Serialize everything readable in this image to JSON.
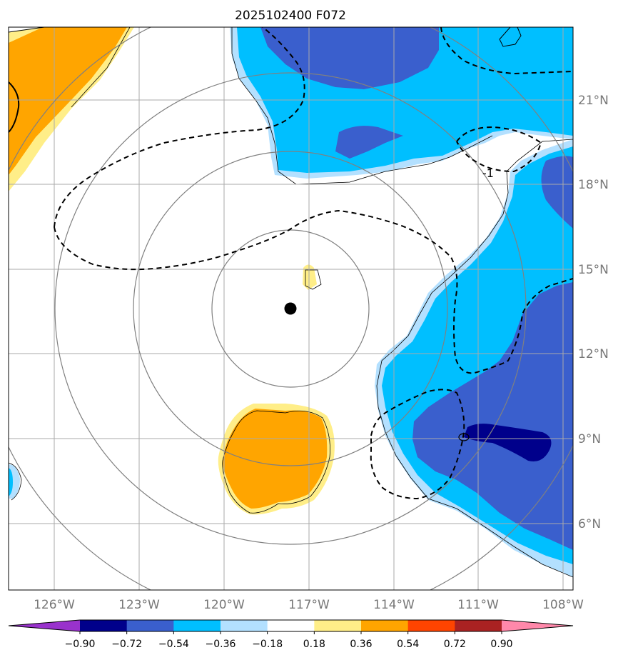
{
  "title": "2025102400 F072",
  "colors": {
    "pink": "#ff88aa",
    "darkred": "#aa2222",
    "red": "#ff4400",
    "orange": "#ffa500",
    "yellow": "#ffee88",
    "white": "#ffffff",
    "lightblue": "#b3e0ff",
    "cyan": "#00bfff",
    "royal": "#3a5fcd",
    "navy": "#00008b",
    "purple": "#9932cc",
    "grid": "#aaaaaa",
    "ring": "#808080"
  },
  "lon_labels": [
    "126°W",
    "123°W",
    "120°W",
    "117°W",
    "114°W",
    "111°W",
    "108°W"
  ],
  "lat_labels": [
    "21°N",
    "18°N",
    "15°N",
    "12°N",
    "9°N",
    "6°N"
  ],
  "contour_label": "-1",
  "colorbar": {
    "ticks": [
      "−0.90",
      "−0.72",
      "−0.54",
      "−0.36",
      "−0.18",
      "0.18",
      "0.36",
      "0.54",
      "0.72",
      "0.90"
    ],
    "bins": [
      "#9932cc",
      "#00008b",
      "#3a5fcd",
      "#00bfff",
      "#b3e0ff",
      "#ffffff",
      "#ffee88",
      "#ffa500",
      "#ff4400",
      "#aa2222",
      "#ff88aa"
    ]
  }
}
